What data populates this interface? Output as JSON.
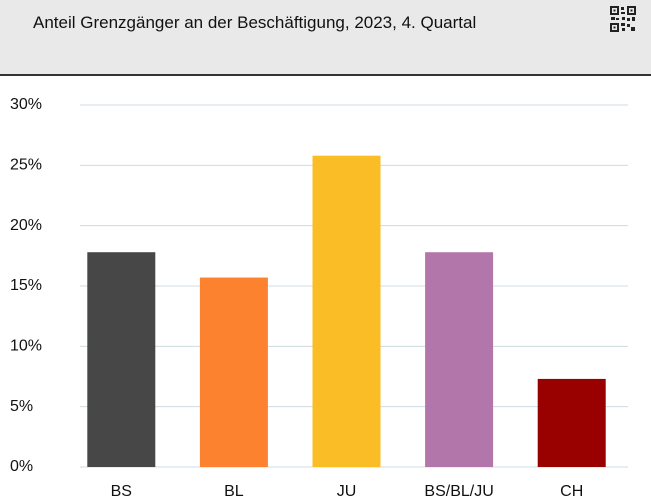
{
  "chart_data": {
    "type": "bar",
    "title": "Anteil Grenzgänger an der Beschäftigung, 2023, 4. Quartal",
    "categories": [
      "BS",
      "BL",
      "JU",
      "BS/BL/JU",
      "CH"
    ],
    "values": [
      17.8,
      15.7,
      25.8,
      17.8,
      7.3
    ],
    "colors": [
      "#474747",
      "#fd8230",
      "#fbbd26",
      "#b376ab",
      "#990000"
    ],
    "ylim": [
      0,
      30
    ],
    "yticks": [
      {
        "value": 0,
        "label": "0%"
      },
      {
        "value": 5,
        "label": "5%"
      },
      {
        "value": 10,
        "label": "10%"
      },
      {
        "value": 15,
        "label": "15%"
      },
      {
        "value": 20,
        "label": "20%"
      },
      {
        "value": 25,
        "label": "25%"
      },
      {
        "value": 30,
        "label": "30%"
      }
    ],
    "grid": true
  }
}
